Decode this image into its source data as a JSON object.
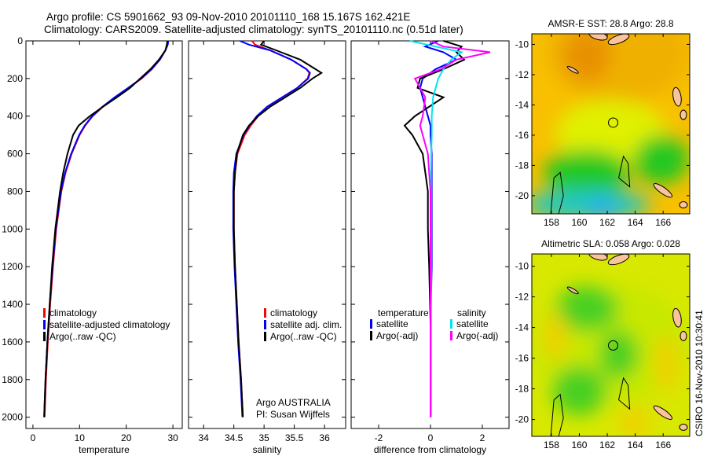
{
  "title_line1": "Argo profile: CS 5901662_93 09-Nov-2010 20101110_168 15.167S 162.421E",
  "title_line2": "Climatology: CARS2009. Satellite-adjusted climatology: synTS_20101110.nc (0.51d later)",
  "footer": "CSIRO 16-Nov-2010 10:30:41",
  "colors": {
    "clim": "#ff0000",
    "sat": "#0000ff",
    "argo": "#000000",
    "sal_sat": "#00e5ee",
    "sal_argo": "#ff00ff"
  },
  "chart_data": [
    {
      "type": "line",
      "id": "temperature",
      "xlabel": "temperature",
      "ylabel": "",
      "xlim": [
        -1.5,
        32
      ],
      "ylim": [
        2060,
        0
      ],
      "xticks": [
        0,
        10,
        20,
        30
      ],
      "yticks": [
        0,
        200,
        400,
        600,
        800,
        1000,
        1200,
        1400,
        1600,
        1800,
        2000
      ],
      "legend": [
        "climatology",
        "satellite-adjusted climatology",
        "Argo(..raw -QC)"
      ],
      "depth": [
        0,
        20,
        50,
        100,
        150,
        200,
        250,
        300,
        350,
        400,
        450,
        500,
        600,
        700,
        800,
        1000,
        1200,
        1400,
        1600,
        1800,
        2000
      ],
      "series": [
        {
          "name": "climatology",
          "color": "clim",
          "values": [
            28.8,
            28.8,
            28.4,
            27.2,
            25.5,
            23.3,
            20.5,
            17.6,
            15.0,
            12.8,
            11.2,
            10.0,
            8.3,
            7.0,
            6.1,
            5.0,
            4.3,
            3.7,
            3.2,
            2.8,
            2.5
          ]
        },
        {
          "name": "satellite-adjusted climatology",
          "color": "sat",
          "values": [
            29.0,
            28.9,
            28.4,
            27.2,
            25.4,
            23.2,
            20.4,
            17.5,
            14.9,
            12.7,
            11.1,
            9.9,
            8.2,
            6.9,
            6.0,
            4.9,
            4.2,
            3.6,
            3.1,
            2.7,
            2.4
          ]
        },
        {
          "name": "Argo(..raw -QC)",
          "color": "argo",
          "values": [
            28.8,
            28.7,
            28.4,
            27.0,
            25.2,
            23.0,
            20.8,
            18.0,
            15.0,
            12.2,
            9.8,
            8.6,
            7.4,
            6.5,
            5.8,
            4.8,
            4.1,
            3.6,
            3.1,
            2.7,
            2.4
          ]
        }
      ]
    },
    {
      "type": "line",
      "id": "salinity",
      "xlabel": "salinity",
      "ylabel": "",
      "xlim": [
        33.75,
        36.35
      ],
      "ylim": [
        2060,
        0
      ],
      "xticks": [
        34,
        34.5,
        35,
        35.5,
        36
      ],
      "yticks": [],
      "legend": [
        "climatology",
        "satellite adj. clim.",
        "Argo(..raw -QC)"
      ],
      "annotation": [
        "Argo AUSTRALIA",
        "PI: Susan Wijffels"
      ],
      "depth": [
        0,
        20,
        50,
        100,
        150,
        170,
        200,
        250,
        300,
        350,
        400,
        450,
        500,
        600,
        700,
        800,
        1000,
        1200,
        1400,
        1600,
        1800,
        2000
      ],
      "series": [
        {
          "name": "climatology",
          "color": "clim",
          "values": [
            34.8,
            34.85,
            35.1,
            35.45,
            35.7,
            35.75,
            35.72,
            35.55,
            35.3,
            35.05,
            34.9,
            34.78,
            34.68,
            34.56,
            34.52,
            34.5,
            34.5,
            34.52,
            34.55,
            34.58,
            34.62,
            34.65
          ]
        },
        {
          "name": "satellite adj. clim.",
          "color": "sat",
          "values": [
            34.6,
            34.75,
            35.1,
            35.45,
            35.7,
            35.76,
            35.73,
            35.55,
            35.3,
            35.05,
            34.88,
            34.76,
            34.66,
            34.54,
            34.5,
            34.49,
            34.49,
            34.51,
            34.54,
            34.57,
            34.61,
            34.64
          ]
        },
        {
          "name": "Argo(..raw -QC)",
          "color": "argo",
          "values": [
            35.0,
            34.95,
            35.2,
            35.6,
            35.85,
            35.95,
            35.8,
            35.6,
            35.35,
            35.1,
            34.9,
            34.75,
            34.65,
            34.55,
            34.52,
            34.5,
            34.5,
            34.52,
            34.55,
            34.58,
            34.62,
            34.65
          ]
        }
      ]
    },
    {
      "type": "line",
      "id": "difference",
      "xlabel": "difference from climatology",
      "ylabel": "",
      "xlim": [
        -3.06,
        3.03
      ],
      "ylim": [
        2060,
        0
      ],
      "xticks": [
        -2,
        0,
        2
      ],
      "yticks": [],
      "legend": [
        "temperature",
        "satellite",
        "Argo(-adj)",
        "salinity",
        "satellite",
        "Argo(-adj)"
      ],
      "depth": [
        0,
        30,
        60,
        100,
        150,
        200,
        250,
        300,
        400,
        450,
        500,
        600,
        700,
        800,
        1000,
        1200,
        1500,
        2000
      ],
      "series": [
        {
          "name": "temperature satellite",
          "color": "sat",
          "values": [
            0.3,
            -0.2,
            0.5,
            1.0,
            0.2,
            -0.3,
            -0.4,
            -0.3,
            -0.1,
            0,
            0,
            0.05,
            0.05,
            0.05,
            0.05,
            0.05,
            0,
            0
          ]
        },
        {
          "name": "temperature Argo(-adj)",
          "color": "argo",
          "values": [
            0.5,
            1.2,
            1.0,
            1.3,
            0.5,
            -0.4,
            -0.5,
            0.5,
            -0.6,
            -1.0,
            -0.7,
            -0.3,
            -0.2,
            -0.1,
            -0.1,
            -0.05,
            0,
            0
          ]
        },
        {
          "name": "salinity satellite",
          "color": "sal_sat",
          "values": [
            -0.8,
            0.2,
            1.2,
            0.8,
            0.5,
            0.3,
            0.2,
            0.1,
            0.05,
            0.05,
            0.05,
            0.03,
            0.02,
            0.02,
            0.02,
            0.02,
            0.02,
            0.02
          ]
        },
        {
          "name": "salinity Argo(-adj)",
          "color": "sal_argo",
          "values": [
            0,
            0.5,
            2.3,
            1.0,
            0.4,
            -0.6,
            -0.4,
            -0.2,
            -0.3,
            -0.4,
            -0.3,
            -0.1,
            -0.05,
            0,
            0,
            0,
            0,
            0
          ]
        }
      ]
    },
    {
      "type": "heatmap",
      "id": "sst-map",
      "title": "AMSR-E SST: 28.8 Argo: 28.8",
      "xlim": [
        156.6,
        167.9
      ],
      "ylim": [
        -21.2,
        -9.3
      ],
      "xticks": [
        158,
        160,
        162,
        164,
        166
      ],
      "yticks": [
        -10,
        -12,
        -14,
        -16,
        -18,
        -20
      ],
      "marker": [
        162.42,
        -15.17
      ]
    },
    {
      "type": "heatmap",
      "id": "sla-map",
      "title": "Altimetric SLA: 0.058 Argo: 0.028",
      "xlim": [
        156.6,
        167.9
      ],
      "ylim": [
        -21.1,
        -9.2
      ],
      "xticks": [
        158,
        160,
        162,
        164,
        166
      ],
      "yticks": [
        -10,
        -12,
        -14,
        -16,
        -18,
        -20
      ],
      "marker": [
        162.42,
        -15.17
      ]
    }
  ]
}
